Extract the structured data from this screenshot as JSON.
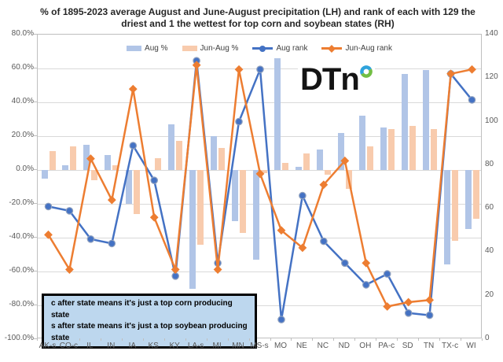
{
  "title": "% of 1895-2023 average August and June-August precipitation (LH) and rank of each with 129 the driest and 1 the wettest for top corn and soybean states (RH)",
  "logo": {
    "text": "DTn"
  },
  "note_box": {
    "line1": "c after state means it's just a top corn producing state",
    "line2": "s after state means it's just a top soybean producing state",
    "background": "#bdd7ee"
  },
  "colors": {
    "aug_pct_bar": "#b1c5e7",
    "jun_aug_pct_bar": "#f8cbad",
    "aug_rank_line": "#4472c4",
    "jun_aug_rank_line": "#ed7d31",
    "gridline": "#d9d9d9",
    "plot_border": "#bfbfbf",
    "axis_text": "#595959",
    "logo_blue": "#2fa3dc",
    "logo_green": "#72be44"
  },
  "chart_data": {
    "type": "bar+line combo, dual axis",
    "categories": [
      "AK-s",
      "CO-c",
      "IL",
      "IN",
      "IA",
      "KS",
      "KY",
      "LA-s",
      "MI",
      "MN",
      "MS-s",
      "MO",
      "NE",
      "NC",
      "ND",
      "OH",
      "PA-c",
      "SD",
      "TN",
      "TX-c",
      "WI"
    ],
    "series": [
      {
        "name": "Aug %",
        "type": "bar",
        "axis": "left",
        "color": "#b1c5e7",
        "values": [
          -5,
          3,
          15,
          9,
          -20,
          0,
          27,
          -70,
          20,
          -30,
          -53,
          66,
          2,
          12,
          22,
          32,
          25,
          57,
          59,
          -56,
          -35
        ]
      },
      {
        "name": "Jun-Aug %",
        "type": "bar",
        "axis": "left",
        "color": "#f8cbad",
        "values": [
          11,
          14,
          -6,
          3,
          -26,
          7,
          17,
          -44,
          13,
          -37,
          -2,
          4,
          10,
          -3,
          -11,
          14,
          24,
          26,
          24,
          -42,
          -29
        ]
      },
      {
        "name": "Aug rank",
        "type": "line",
        "axis": "right",
        "color": "#4472c4",
        "marker": "circle",
        "values": [
          61,
          59,
          46,
          44,
          89,
          73,
          29,
          128,
          35,
          100,
          124,
          9,
          66,
          45,
          35,
          25,
          30,
          12,
          11,
          122,
          110
        ]
      },
      {
        "name": "Jun-Aug rank",
        "type": "line",
        "axis": "right",
        "color": "#ed7d31",
        "marker": "diamond",
        "values": [
          48,
          32,
          83,
          64,
          115,
          56,
          32,
          126,
          32,
          124,
          76,
          50,
          42,
          71,
          82,
          35,
          15,
          17,
          18,
          122,
          124
        ]
      }
    ],
    "left_axis": {
      "min": -100,
      "max": 80,
      "step": 20,
      "format": "percent_one_decimal"
    },
    "right_axis": {
      "min": 0,
      "max": 140,
      "step": 20
    },
    "grid": true,
    "legend_position": "top"
  }
}
